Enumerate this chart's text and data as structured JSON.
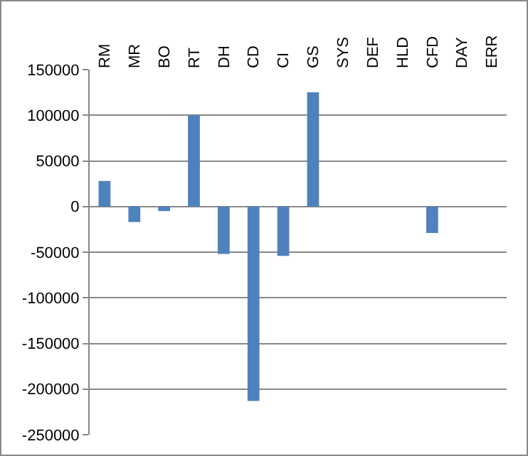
{
  "chart_data": {
    "type": "bar",
    "categories": [
      "RM",
      "MR",
      "BO",
      "RT",
      "DH",
      "CD",
      "CI",
      "GS",
      "SYS",
      "DEF",
      "HLD",
      "CFD",
      "DAY",
      "ERR"
    ],
    "values": [
      28000,
      -17000,
      -5000,
      100000,
      -52000,
      -213000,
      -54000,
      125000,
      0,
      0,
      0,
      -29000,
      0,
      0
    ],
    "color": "#4f81bd",
    "ylim": [
      -250000,
      150000
    ],
    "yticks": [
      -250000,
      -200000,
      -150000,
      -100000,
      -50000,
      0,
      50000,
      100000,
      150000
    ],
    "grid": "y"
  }
}
